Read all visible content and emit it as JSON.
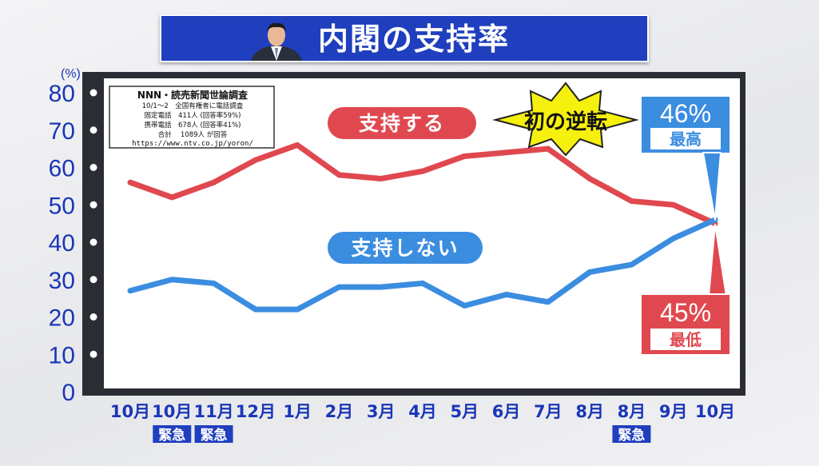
{
  "title": "内閣の支持率",
  "y_unit": "(%)",
  "source": {
    "line1": "NNN・読売新聞世論調査",
    "line2": "10/1～2　全国有権者に電話調査",
    "line3": "固定電話　411人 (回答率59%)",
    "line4": "携帯電話　678人 (回答率41%)",
    "line5": "合計　 1089人 が回答",
    "line6": "https://www.ntv.co.jp/yoron/"
  },
  "callouts": {
    "support_label": "支持する",
    "nonsupport_label": "支持しない",
    "reversal": "初の逆転",
    "high_value": "46%",
    "high_label": "最高",
    "low_value": "45%",
    "low_label": "最低"
  },
  "emergency_label": "緊急",
  "colors": {
    "support": "#e0484f",
    "nonsupport": "#3b8de0",
    "axis_text": "#1a36b8",
    "banner": "#1f3fbe",
    "burst": "#f6f00e"
  },
  "chart_data": {
    "type": "line",
    "title": "内閣の支持率",
    "ylabel": "(%)",
    "ylim": [
      0,
      80
    ],
    "yticks": [
      0,
      10,
      20,
      30,
      40,
      50,
      60,
      70,
      80
    ],
    "grid": false,
    "categories": [
      "10月",
      "10月",
      "11月",
      "12月",
      "1月",
      "2月",
      "3月",
      "4月",
      "5月",
      "6月",
      "7月",
      "8月",
      "8月",
      "9月",
      "10月"
    ],
    "emergency_flags": [
      false,
      true,
      true,
      false,
      false,
      false,
      false,
      false,
      false,
      false,
      false,
      false,
      true,
      false,
      false
    ],
    "series": [
      {
        "name": "支持する",
        "color": "#e0484f",
        "values": [
          56,
          52,
          56,
          62,
          66,
          58,
          57,
          59,
          63,
          64,
          65,
          57,
          51,
          50,
          45
        ]
      },
      {
        "name": "支持しない",
        "color": "#3b8de0",
        "values": [
          27,
          30,
          29,
          22,
          22,
          28,
          28,
          29,
          23,
          26,
          24,
          32,
          34,
          41,
          46
        ]
      }
    ]
  }
}
